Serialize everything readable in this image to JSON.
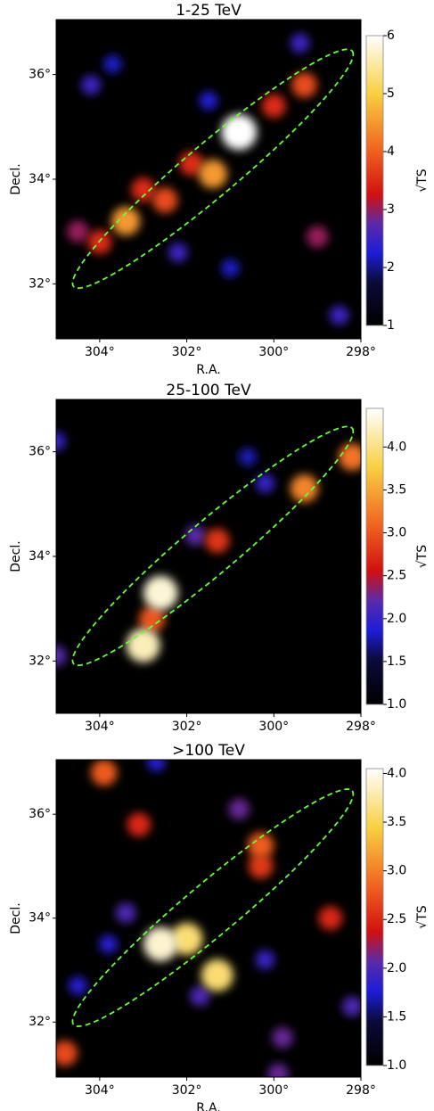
{
  "colormap": {
    "stops": [
      0,
      0.15,
      0.25,
      0.35,
      0.45,
      0.6,
      0.8,
      1
    ],
    "colors": [
      "#000000",
      "#0b0b3a",
      "#1d1dd8",
      "#5a2aa8",
      "#d01010",
      "#f06020",
      "#f8d040",
      "#ffffff"
    ]
  },
  "chart_data": [
    {
      "type": "heatmap",
      "title": "1-25 TeV",
      "xlabel": "R.A.",
      "ylabel": "Decl.",
      "colorbar_label": "√TS",
      "xlim": [
        305,
        298
      ],
      "ylim": [
        30.95,
        37.05
      ],
      "xticks": [
        {
          "value": 304,
          "label": "304°"
        },
        {
          "value": 302,
          "label": "302°"
        },
        {
          "value": 300,
          "label": "300°"
        },
        {
          "value": 298,
          "label": "298°"
        }
      ],
      "yticks": [
        {
          "value": 32,
          "label": "32°"
        },
        {
          "value": 34,
          "label": "34°"
        },
        {
          "value": 36,
          "label": "36°"
        }
      ],
      "clim": [
        1,
        6
      ],
      "cticks": [
        1,
        2,
        3,
        4,
        5,
        6
      ],
      "ellipse": {
        "x": [
          304.6,
          298.2
        ],
        "y": [
          31.95,
          36.45
        ],
        "minor": 0.5,
        "color": "#66ff33"
      },
      "points": {
        "x": [
          301.0,
          304.2,
          299.4,
          303.7,
          298.5,
          302.2,
          301.5,
          304.5,
          299.0,
          300.0,
          303.0,
          301.9,
          304.0,
          302.5,
          299.3,
          301.4,
          303.4,
          300.8
        ],
        "y": [
          32.3,
          35.8,
          36.6,
          36.2,
          31.4,
          32.6,
          35.5,
          33.0,
          32.9,
          35.4,
          33.8,
          34.3,
          32.8,
          33.6,
          35.8,
          34.1,
          33.2,
          34.9
        ],
        "values": [
          2.2,
          2.5,
          2.5,
          2.2,
          2.5,
          2.5,
          2.3,
          3.0,
          3.0,
          3.5,
          3.5,
          3.5,
          3.5,
          3.8,
          3.8,
          4.5,
          4.5,
          6.0
        ]
      }
    },
    {
      "type": "heatmap",
      "title": "25-100 TeV",
      "ylabel": "Decl.",
      "colorbar_label": "√TS",
      "xlim": [
        305,
        298
      ],
      "ylim": [
        31.0,
        37.0
      ],
      "xticks": [
        {
          "value": 304,
          "label": "304°"
        },
        {
          "value": 302,
          "label": "302°"
        },
        {
          "value": 300,
          "label": "300°"
        },
        {
          "value": 298,
          "label": "298°"
        }
      ],
      "yticks": [
        {
          "value": 32,
          "label": "32°"
        },
        {
          "value": 34,
          "label": "34°"
        },
        {
          "value": 36,
          "label": "36°"
        }
      ],
      "clim": [
        1,
        4.45
      ],
      "cticks": [
        {
          "value": 1,
          "label": "1.0"
        },
        {
          "value": 1.5,
          "label": "1.5"
        },
        {
          "value": 2,
          "label": "2.0"
        },
        {
          "value": 2.5,
          "label": "2.5"
        },
        {
          "value": 3,
          "label": "3.0"
        },
        {
          "value": 3.5,
          "label": "3.5"
        },
        {
          "value": 4,
          "label": "4.0"
        }
      ],
      "ellipse": {
        "x": [
          304.6,
          298.2
        ],
        "y": [
          31.95,
          36.45
        ],
        "minor": 0.5,
        "color": "#66ff33"
      },
      "points": {
        "x": [
          300.6,
          305.0,
          300.2,
          301.8,
          305.0,
          301.3,
          302.8,
          298.2,
          299.3,
          303.0,
          302.6
        ],
        "y": [
          35.9,
          36.2,
          35.4,
          34.4,
          32.1,
          34.3,
          32.8,
          35.9,
          35.3,
          32.3,
          33.3
        ],
        "values": [
          1.8,
          2.0,
          2.0,
          2.2,
          2.2,
          2.8,
          3.0,
          3.2,
          3.3,
          4.2,
          4.3
        ]
      }
    },
    {
      "type": "heatmap",
      "title": ">100 TeV",
      "xlabel": "R.A.",
      "ylabel": "Decl.",
      "colorbar_label": "√TS",
      "xlim": [
        305,
        298
      ],
      "ylim": [
        30.94,
        37.05
      ],
      "xticks": [
        {
          "value": 304,
          "label": "304°"
        },
        {
          "value": 302,
          "label": "302°"
        },
        {
          "value": 300,
          "label": "300°"
        },
        {
          "value": 298,
          "label": "298°"
        }
      ],
      "yticks": [
        {
          "value": 32,
          "label": "32°"
        },
        {
          "value": 34,
          "label": "34°"
        },
        {
          "value": 36,
          "label": "36°"
        }
      ],
      "clim": [
        1,
        4.05
      ],
      "cticks": [
        {
          "value": 1,
          "label": "1.0"
        },
        {
          "value": 1.5,
          "label": "1.5"
        },
        {
          "value": 2,
          "label": "2.0"
        },
        {
          "value": 2.5,
          "label": "2.5"
        },
        {
          "value": 3,
          "label": "3.0"
        },
        {
          "value": 3.5,
          "label": "3.5"
        },
        {
          "value": 4,
          "label": "4.0"
        }
      ],
      "ellipse": {
        "x": [
          304.6,
          298.2
        ],
        "y": [
          31.95,
          36.45
        ],
        "minor": 0.5,
        "color": "#66ff33"
      },
      "points": {
        "x": [
          303.8,
          304.5,
          302.7,
          300.2,
          303.4,
          299.9,
          298.2,
          299.8,
          300.8,
          301.7,
          303.1,
          298.7,
          300.3,
          300.3,
          304.8,
          303.9,
          302.0,
          301.3,
          302.6
        ],
        "y": [
          33.5,
          32.7,
          37.0,
          33.2,
          34.1,
          31.0,
          32.3,
          31.7,
          36.1,
          32.5,
          35.8,
          34.0,
          35.0,
          35.4,
          31.4,
          36.8,
          33.6,
          32.9,
          33.5
        ],
        "values": [
          1.8,
          1.8,
          1.8,
          1.9,
          2.0,
          2.1,
          2.0,
          2.1,
          2.1,
          2.0,
          2.5,
          2.5,
          2.6,
          2.8,
          2.7,
          2.8,
          3.6,
          3.6,
          3.9
        ]
      }
    }
  ]
}
